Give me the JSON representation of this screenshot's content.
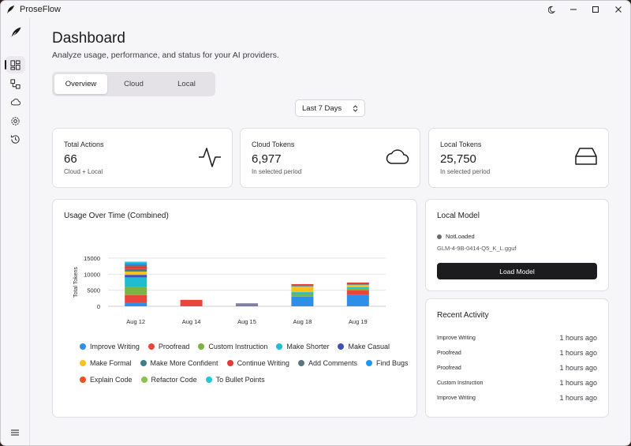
{
  "app": {
    "title": "ProseFlow"
  },
  "page": {
    "title": "Dashboard",
    "subtitle": "Analyze usage, performance, and status for your AI providers."
  },
  "tabs": [
    "Overview",
    "Cloud",
    "Local"
  ],
  "range": {
    "selected": "Last 7 Days"
  },
  "stats": [
    {
      "label": "Total Actions",
      "value": "66",
      "sub": "Cloud + Local",
      "icon": "activity-icon"
    },
    {
      "label": "Cloud Tokens",
      "value": "6,977",
      "sub": "In selected period",
      "icon": "cloud-icon"
    },
    {
      "label": "Local Tokens",
      "value": "25,750",
      "sub": "In selected period",
      "icon": "hard-drive-icon"
    }
  ],
  "usage": {
    "title": "Usage Over Time (Combined)"
  },
  "chart_data": {
    "type": "bar",
    "stacked": true,
    "title": "Usage Over Time (Combined)",
    "xlabel": "",
    "ylabel": "Total Tokens",
    "ylim": [
      0,
      15000
    ],
    "yticks": [
      "0",
      "5000",
      "10000",
      "15000"
    ],
    "categories": [
      "Aug 12",
      "Aug 14",
      "Aug 15",
      "Aug 18",
      "Aug 19"
    ],
    "series": [
      {
        "name": "Improve Writing",
        "color": "#2f8ee8",
        "values": [
          1000,
          0,
          400,
          3000,
          3500
        ]
      },
      {
        "name": "Proofread",
        "color": "#e8453c",
        "values": [
          2500,
          2000,
          300,
          0,
          1500
        ]
      },
      {
        "name": "Custom Instruction",
        "color": "#7cb342",
        "values": [
          2500,
          0,
          0,
          800,
          500
        ]
      },
      {
        "name": "Make Shorter",
        "color": "#1fbcd2",
        "values": [
          3000,
          0,
          0,
          600,
          400
        ]
      },
      {
        "name": "Make Casual",
        "color": "#3f51b5",
        "values": [
          800,
          0,
          0,
          0,
          0
        ]
      },
      {
        "name": "Make Formal",
        "color": "#f9c11a",
        "values": [
          1000,
          0,
          0,
          1800,
          800
        ]
      },
      {
        "name": "Make More Confident",
        "color": "#3f7f86",
        "values": [
          800,
          0,
          0,
          400,
          300
        ]
      },
      {
        "name": "Continue Writing",
        "color": "#e53935",
        "values": [
          800,
          0,
          0,
          300,
          400
        ]
      },
      {
        "name": "Add Comments",
        "color": "#5e7580",
        "values": [
          500,
          0,
          200,
          0,
          0
        ]
      },
      {
        "name": "Find Bugs",
        "color": "#2196f3",
        "values": [
          500,
          0,
          0,
          0,
          0
        ]
      },
      {
        "name": "Explain Code",
        "color": "#f4511e",
        "values": [
          0,
          0,
          0,
          0,
          0
        ]
      },
      {
        "name": "Refactor Code",
        "color": "#8bc34a",
        "values": [
          0,
          0,
          0,
          0,
          0
        ]
      },
      {
        "name": "To Bullet Points",
        "color": "#26c6da",
        "values": [
          500,
          0,
          0,
          0,
          0
        ]
      }
    ],
    "legend_position": "bottom"
  },
  "local_model": {
    "title": "Local Model",
    "status": "NotLoaded",
    "file": "GLM-4-9B-0414-Q5_K_L.gguf",
    "button": "Load Model"
  },
  "recent": {
    "title": "Recent Activity",
    "items": [
      {
        "name": "Improve Writing",
        "time": "1 hours ago"
      },
      {
        "name": "Proofread",
        "time": "1 hours ago"
      },
      {
        "name": "Proofread",
        "time": "1 hours ago"
      },
      {
        "name": "Custom Instruction",
        "time": "1 hours ago"
      },
      {
        "name": "Improve Writing",
        "time": "1 hours ago"
      }
    ]
  }
}
